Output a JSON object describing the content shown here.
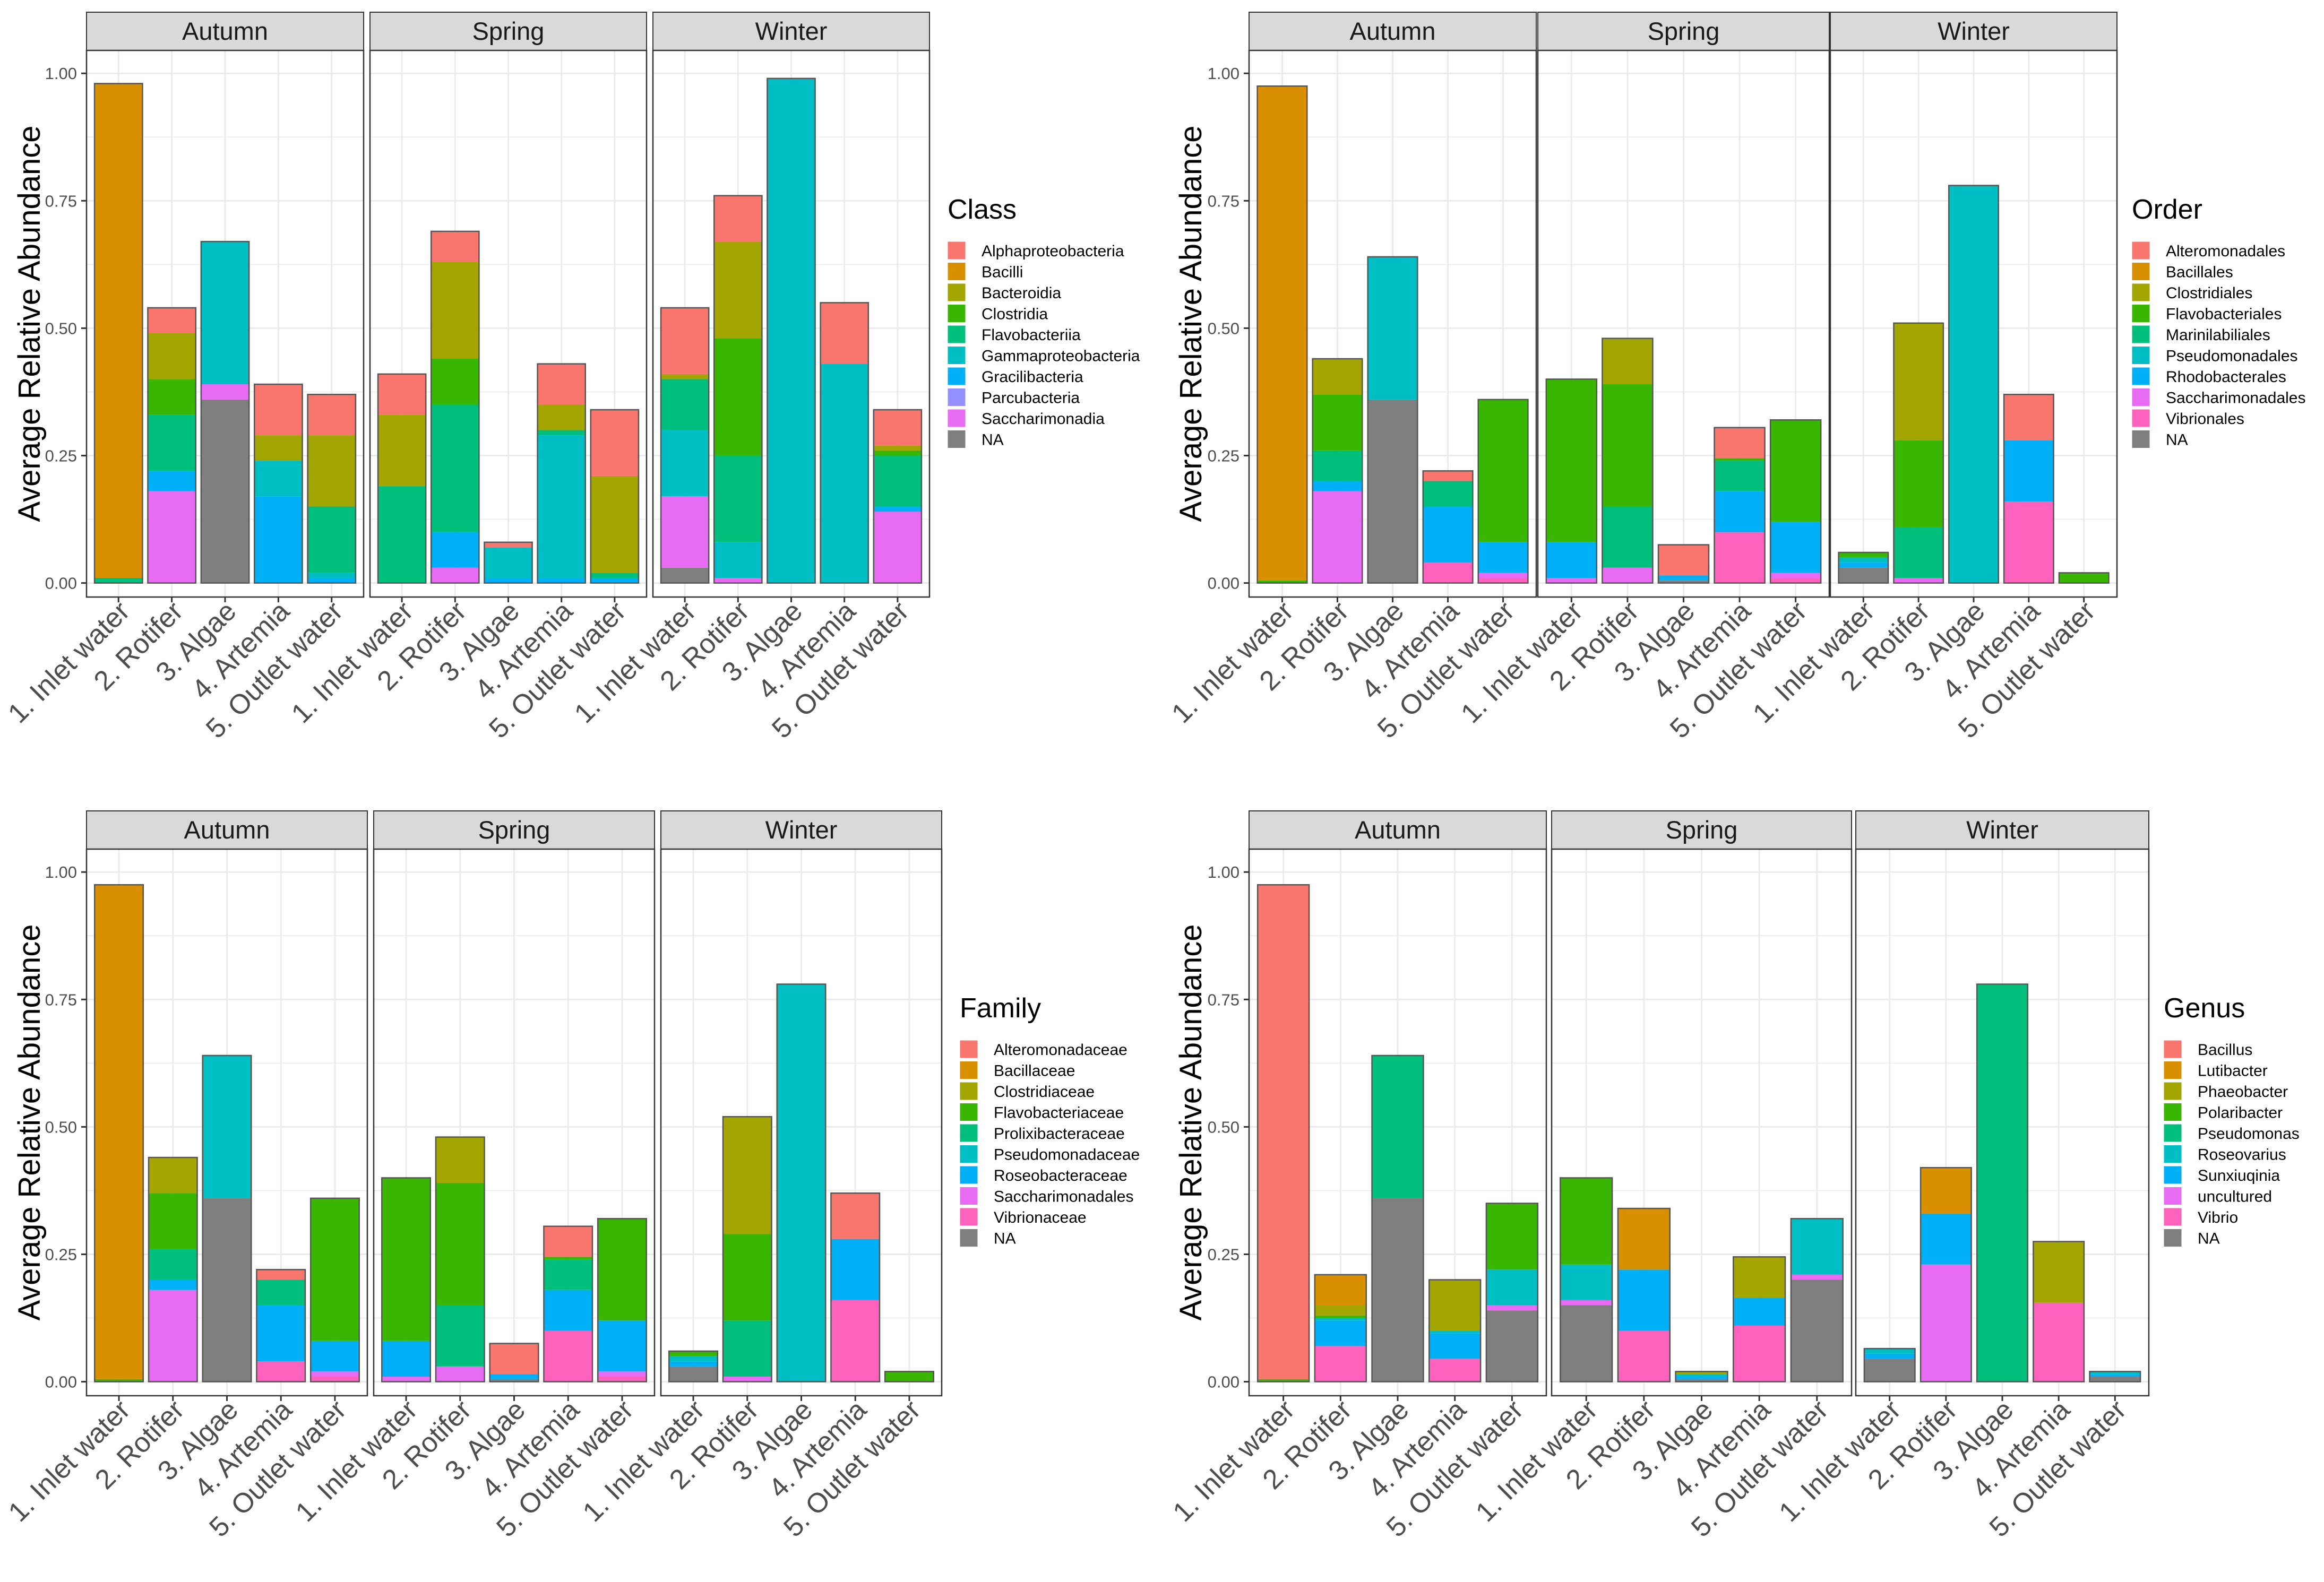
{
  "colors": {
    "c1": "#F8766D",
    "c2": "#D89000",
    "c3": "#A3A500",
    "c4": "#39B600",
    "c5": "#00BF7D",
    "c6": "#00BFC4",
    "c7": "#00B0F6",
    "c8": "#9590FF",
    "c9": "#E76BF3",
    "c10": "#FF62BC",
    "na": "#7F7F7F",
    "strip_fill": "#D9D9D9",
    "grid": "#EBEBEB",
    "border": "#333333"
  },
  "chart_data": [
    {
      "type": "bar",
      "stacked": true,
      "facets": [
        "Autumn",
        "Spring",
        "Winter"
      ],
      "categories": [
        "1. Inlet water",
        "2. Rotifer",
        "3. Algae",
        "4. Artemia",
        "5. Outlet water"
      ],
      "ylabel": "Average Relative Abundance",
      "ylim": [
        0,
        1
      ],
      "yticks": [
        "0.00",
        "0.25",
        "0.50",
        "0.75",
        "1.00"
      ],
      "grid": true,
      "legend": {
        "title": "Class",
        "position": "right",
        "entries": [
          "Alphaproteobacteria",
          "Bacilli",
          "Bacteroidia",
          "Clostridia",
          "Flavobacteriia",
          "Gammaproteobacteria",
          "Gracilibacteria",
          "Parcubacteria",
          "Saccharimonadia",
          "NA"
        ],
        "colors": [
          "#F8766D",
          "#D89000",
          "#A3A500",
          "#39B600",
          "#00BF7D",
          "#00BFC4",
          "#00B0F6",
          "#9590FF",
          "#E76BF3",
          "#7F7F7F"
        ]
      },
      "values": {
        "Autumn": [
          [
            0,
            0.97,
            0,
            0,
            0.01,
            0,
            0,
            0,
            0,
            0
          ],
          [
            0.05,
            0,
            0.09,
            0.07,
            0.11,
            0,
            0.04,
            0,
            0.18,
            0
          ],
          [
            0,
            0,
            0,
            0,
            0,
            0.28,
            0,
            0,
            0.03,
            0.36
          ],
          [
            0.1,
            0,
            0.05,
            0,
            0,
            0.07,
            0.17,
            0,
            0,
            0
          ],
          [
            0.08,
            0,
            0.14,
            0,
            0.13,
            0.01,
            0.01,
            0,
            0,
            0
          ]
        ],
        "Spring": [
          [
            0.08,
            0,
            0.14,
            0,
            0.19,
            0,
            0,
            0,
            0,
            0
          ],
          [
            0.06,
            0,
            0.19,
            0.09,
            0.25,
            0,
            0.07,
            0,
            0.03,
            0
          ],
          [
            0.01,
            0,
            0,
            0,
            0,
            0.06,
            0.01,
            0,
            0,
            0
          ],
          [
            0.08,
            0,
            0.05,
            0,
            0.01,
            0.28,
            0.01,
            0,
            0,
            0
          ],
          [
            0.13,
            0,
            0.19,
            0,
            0.01,
            0,
            0.01,
            0,
            0,
            0
          ]
        ],
        "Winter": [
          [
            0.13,
            0,
            0.01,
            0,
            0.1,
            0.13,
            0,
            0,
            0.14,
            0.03
          ],
          [
            0.09,
            0,
            0.19,
            0.23,
            0.17,
            0.07,
            0,
            0,
            0.01,
            0
          ],
          [
            0,
            0,
            0,
            0,
            0,
            0.99,
            0,
            0,
            0,
            0
          ],
          [
            0.12,
            0,
            0,
            0,
            0,
            0.43,
            0,
            0,
            0,
            0
          ],
          [
            0.07,
            0,
            0.01,
            0.01,
            0.1,
            0,
            0.01,
            0,
            0.14,
            0
          ]
        ]
      }
    },
    {
      "type": "bar",
      "stacked": true,
      "facets": [
        "Autumn",
        "Spring",
        "Winter"
      ],
      "categories": [
        "1. Inlet water",
        "2. Rotifer",
        "3. Algae",
        "4. Artemia",
        "5. Outlet water"
      ],
      "ylabel": "Average Relative Abundance",
      "ylim": [
        0,
        1
      ],
      "yticks": [
        "0.00",
        "0.25",
        "0.50",
        "0.75",
        "1.00"
      ],
      "grid": true,
      "legend": {
        "title": "Order",
        "position": "right",
        "entries": [
          "Alteromonadales",
          "Bacillales",
          "Clostridiales",
          "Flavobacteriales",
          "Marinilabiliales",
          "Pseudomonadales",
          "Rhodobacterales",
          "Saccharimonadales",
          "Vibrionales",
          "NA"
        ],
        "colors": [
          "#F8766D",
          "#D89000",
          "#A3A500",
          "#39B600",
          "#00BF7D",
          "#00BFC4",
          "#00B0F6",
          "#E76BF3",
          "#FF62BC",
          "#7F7F7F"
        ]
      },
      "values": {
        "Autumn": [
          [
            0,
            0.97,
            0,
            0.005,
            0,
            0,
            0,
            0,
            0,
            0
          ],
          [
            0,
            0,
            0.07,
            0.11,
            0.06,
            0,
            0.02,
            0.18,
            0,
            0
          ],
          [
            0,
            0,
            0,
            0,
            0,
            0.28,
            0,
            0,
            0,
            0.36
          ],
          [
            0.02,
            0,
            0,
            0,
            0.05,
            0,
            0.11,
            0,
            0.04,
            0
          ],
          [
            0,
            0,
            0,
            0.28,
            0,
            0,
            0.06,
            0.01,
            0.01,
            0
          ]
        ],
        "Spring": [
          [
            0,
            0,
            0,
            0.32,
            0,
            0,
            0.07,
            0.01,
            0,
            0
          ],
          [
            0,
            0,
            0.09,
            0.24,
            0.12,
            0,
            0,
            0.03,
            0,
            0
          ],
          [
            0.06,
            0,
            0,
            0,
            0,
            0,
            0.01,
            0,
            0,
            0.005
          ],
          [
            0.06,
            0,
            0,
            0.005,
            0.06,
            0,
            0.08,
            0,
            0.1,
            0
          ],
          [
            0,
            0,
            0,
            0.2,
            0,
            0,
            0.1,
            0.01,
            0.01,
            0
          ]
        ],
        "Winter": [
          [
            0,
            0,
            0,
            0.01,
            0,
            0.01,
            0.01,
            0,
            0,
            0.03
          ],
          [
            0,
            0,
            0.23,
            0.17,
            0.1,
            0,
            0,
            0.01,
            0,
            0
          ],
          [
            0,
            0,
            0,
            0,
            0,
            0.78,
            0,
            0,
            0,
            0
          ],
          [
            0.09,
            0,
            0,
            0,
            0,
            0,
            0.12,
            0,
            0.16,
            0
          ],
          [
            0,
            0,
            0,
            0.02,
            0,
            0,
            0,
            0,
            0,
            0
          ]
        ]
      }
    },
    {
      "type": "bar",
      "stacked": true,
      "facets": [
        "Autumn",
        "Spring",
        "Winter"
      ],
      "categories": [
        "1. Inlet water",
        "2. Rotifer",
        "3. Algae",
        "4. Artemia",
        "5. Outlet water"
      ],
      "ylabel": "Average Relative Abundance",
      "ylim": [
        0,
        1
      ],
      "yticks": [
        "0.00",
        "0.25",
        "0.50",
        "0.75",
        "1.00"
      ],
      "grid": true,
      "legend": {
        "title": "Family",
        "position": "right",
        "entries": [
          "Alteromonadaceae",
          "Bacillaceae",
          "Clostridiaceae",
          "Flavobacteriaceae",
          "Prolixibacteraceae",
          "Pseudomonadaceae",
          "Roseobacteraceae",
          "Saccharimonadales",
          "Vibrionaceae",
          "NA"
        ],
        "colors": [
          "#F8766D",
          "#D89000",
          "#A3A500",
          "#39B600",
          "#00BF7D",
          "#00BFC4",
          "#00B0F6",
          "#E76BF3",
          "#FF62BC",
          "#7F7F7F"
        ]
      },
      "values": {
        "Autumn": [
          [
            0,
            0.97,
            0,
            0.005,
            0,
            0,
            0,
            0,
            0,
            0
          ],
          [
            0,
            0,
            0.07,
            0.11,
            0.06,
            0,
            0.02,
            0.18,
            0,
            0
          ],
          [
            0,
            0,
            0,
            0,
            0,
            0.28,
            0,
            0,
            0,
            0.36
          ],
          [
            0.02,
            0,
            0,
            0,
            0.05,
            0,
            0.11,
            0,
            0.04,
            0
          ],
          [
            0,
            0,
            0,
            0.28,
            0,
            0,
            0.06,
            0.01,
            0.01,
            0
          ]
        ],
        "Spring": [
          [
            0,
            0,
            0,
            0.32,
            0,
            0,
            0.07,
            0.01,
            0,
            0
          ],
          [
            0,
            0,
            0.09,
            0.24,
            0.12,
            0,
            0,
            0.03,
            0,
            0
          ],
          [
            0.06,
            0,
            0,
            0,
            0,
            0,
            0.01,
            0,
            0,
            0.005
          ],
          [
            0.06,
            0,
            0,
            0.005,
            0.06,
            0,
            0.08,
            0,
            0.1,
            0
          ],
          [
            0,
            0,
            0,
            0.2,
            0,
            0,
            0.1,
            0.01,
            0.01,
            0
          ]
        ],
        "Winter": [
          [
            0,
            0,
            0,
            0.01,
            0,
            0.01,
            0.01,
            0,
            0,
            0.03
          ],
          [
            0,
            0,
            0.23,
            0.17,
            0.11,
            0,
            0,
            0.01,
            0,
            0
          ],
          [
            0,
            0,
            0,
            0,
            0,
            0.78,
            0,
            0,
            0,
            0
          ],
          [
            0.09,
            0,
            0,
            0,
            0,
            0,
            0.12,
            0,
            0.16,
            0
          ],
          [
            0,
            0,
            0,
            0.02,
            0,
            0,
            0,
            0,
            0,
            0
          ]
        ]
      }
    },
    {
      "type": "bar",
      "stacked": true,
      "facets": [
        "Autumn",
        "Spring",
        "Winter"
      ],
      "categories": [
        "1. Inlet water",
        "2. Rotifer",
        "3. Algae",
        "4. Artemia",
        "5. Outlet water"
      ],
      "ylabel": "Average Relative Abundance",
      "ylim": [
        0,
        1
      ],
      "yticks": [
        "0.00",
        "0.25",
        "0.50",
        "0.75",
        "1.00"
      ],
      "grid": true,
      "legend": {
        "title": "Genus",
        "position": "right",
        "entries": [
          "Bacillus",
          "Lutibacter",
          "Phaeobacter",
          "Polaribacter",
          "Pseudomonas",
          "Roseovarius",
          "Sunxiuqinia",
          "uncultured",
          "Vibrio",
          "NA"
        ],
        "colors": [
          "#F8766D",
          "#D89000",
          "#A3A500",
          "#39B600",
          "#00BF7D",
          "#00BFC4",
          "#00B0F6",
          "#E76BF3",
          "#FF62BC",
          "#7F7F7F"
        ]
      },
      "values": {
        "Autumn": [
          [
            0.97,
            0,
            0,
            0.005,
            0,
            0,
            0,
            0,
            0,
            0
          ],
          [
            0,
            0.06,
            0.02,
            0.005,
            0,
            0.005,
            0.05,
            0,
            0.07,
            0
          ],
          [
            0,
            0,
            0,
            0,
            0.28,
            0,
            0,
            0,
            0,
            0.36
          ],
          [
            0,
            0,
            0.1,
            0,
            0,
            0.005,
            0.05,
            0,
            0.045,
            0
          ],
          [
            0,
            0,
            0,
            0.13,
            0,
            0.07,
            0,
            0.01,
            0,
            0.14
          ]
        ],
        "Spring": [
          [
            0,
            0,
            0,
            0.17,
            0,
            0.07,
            0,
            0.01,
            0,
            0.15
          ],
          [
            0,
            0.12,
            0,
            0,
            0,
            0,
            0.12,
            0,
            0.1,
            0
          ],
          [
            0,
            0,
            0.005,
            0,
            0,
            0.005,
            0.005,
            0,
            0,
            0.005
          ],
          [
            0,
            0,
            0.08,
            0,
            0,
            0,
            0.055,
            0,
            0.11,
            0
          ],
          [
            0,
            0,
            0,
            0,
            0,
            0.11,
            0,
            0.01,
            0,
            0.2
          ]
        ],
        "Winter": [
          [
            0,
            0,
            0,
            0,
            0,
            0.01,
            0.01,
            0,
            0,
            0.045
          ],
          [
            0,
            0.09,
            0,
            0,
            0,
            0,
            0.1,
            0.23,
            0,
            0
          ],
          [
            0,
            0,
            0,
            0,
            0.78,
            0,
            0,
            0,
            0,
            0
          ],
          [
            0,
            0,
            0.12,
            0,
            0,
            0,
            0,
            0,
            0.155,
            0
          ],
          [
            0,
            0,
            0,
            0,
            0,
            0.005,
            0.005,
            0,
            0,
            0.01
          ]
        ]
      }
    }
  ]
}
